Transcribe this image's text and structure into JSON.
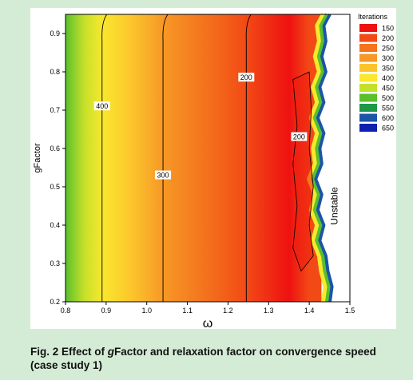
{
  "chart_data": {
    "type": "heatmap",
    "title": "",
    "xlabel": "ω",
    "ylabel": "gFactor",
    "xlim": [
      0.8,
      1.5
    ],
    "ylim": [
      0.2,
      0.95
    ],
    "x_ticks": [
      0.8,
      0.9,
      1.0,
      1.1,
      1.2,
      1.3,
      1.4,
      1.5
    ],
    "x_tick_labels": [
      "0.8",
      "0.9",
      "1.0",
      "1.1",
      "1.2",
      "1.3",
      "1.4",
      "1.5"
    ],
    "y_ticks": [
      0.2,
      0.3,
      0.4,
      0.5,
      0.6,
      0.7,
      0.8,
      0.9
    ],
    "y_tick_labels": [
      "0.2",
      "0.3",
      "0.4",
      "0.5",
      "0.6",
      "0.7",
      "0.8",
      "0.9"
    ],
    "legend": {
      "title": "Iterations",
      "placement": "right",
      "levels": [
        150,
        200,
        250,
        300,
        350,
        400,
        450,
        500,
        550,
        600,
        650
      ],
      "labels": [
        "150",
        "200",
        "250",
        "300",
        "350",
        "400",
        "450",
        "500",
        "550",
        "600",
        "650"
      ],
      "colors": [
        "#ee1111",
        "#f24a16",
        "#f4731d",
        "#f79826",
        "#fcc42c",
        "#f9e82d",
        "#c4e02a",
        "#5abf2d",
        "#1c9848",
        "#1a55a8",
        "#0f1fb0"
      ]
    },
    "contour_lines": [
      {
        "level": 400,
        "label": "400",
        "omega": 0.89,
        "label_gfactor": 0.71
      },
      {
        "level": 300,
        "label": "300",
        "omega": 1.04,
        "label_gfactor": 0.53
      },
      {
        "level": 200,
        "label": "200",
        "omega": 1.245,
        "label_gfactor": 0.785
      },
      {
        "level": 200,
        "label": "200",
        "omega": 1.375,
        "label_gfactor": 0.63
      }
    ],
    "iterations_model": {
      "omega": [
        0.8,
        0.89,
        1.04,
        1.245,
        1.35,
        1.4
      ],
      "iterations": [
        500,
        400,
        300,
        200,
        150,
        200
      ]
    },
    "annotations": [
      {
        "text": "Unstable",
        "omega": 1.47,
        "gfactor": 0.45
      }
    ]
  },
  "caption": {
    "prefix": "Fig. 2   Effect of ",
    "italic": "g",
    "suffix": "Factor and relaxation factor on convergence speed (case study 1)"
  }
}
